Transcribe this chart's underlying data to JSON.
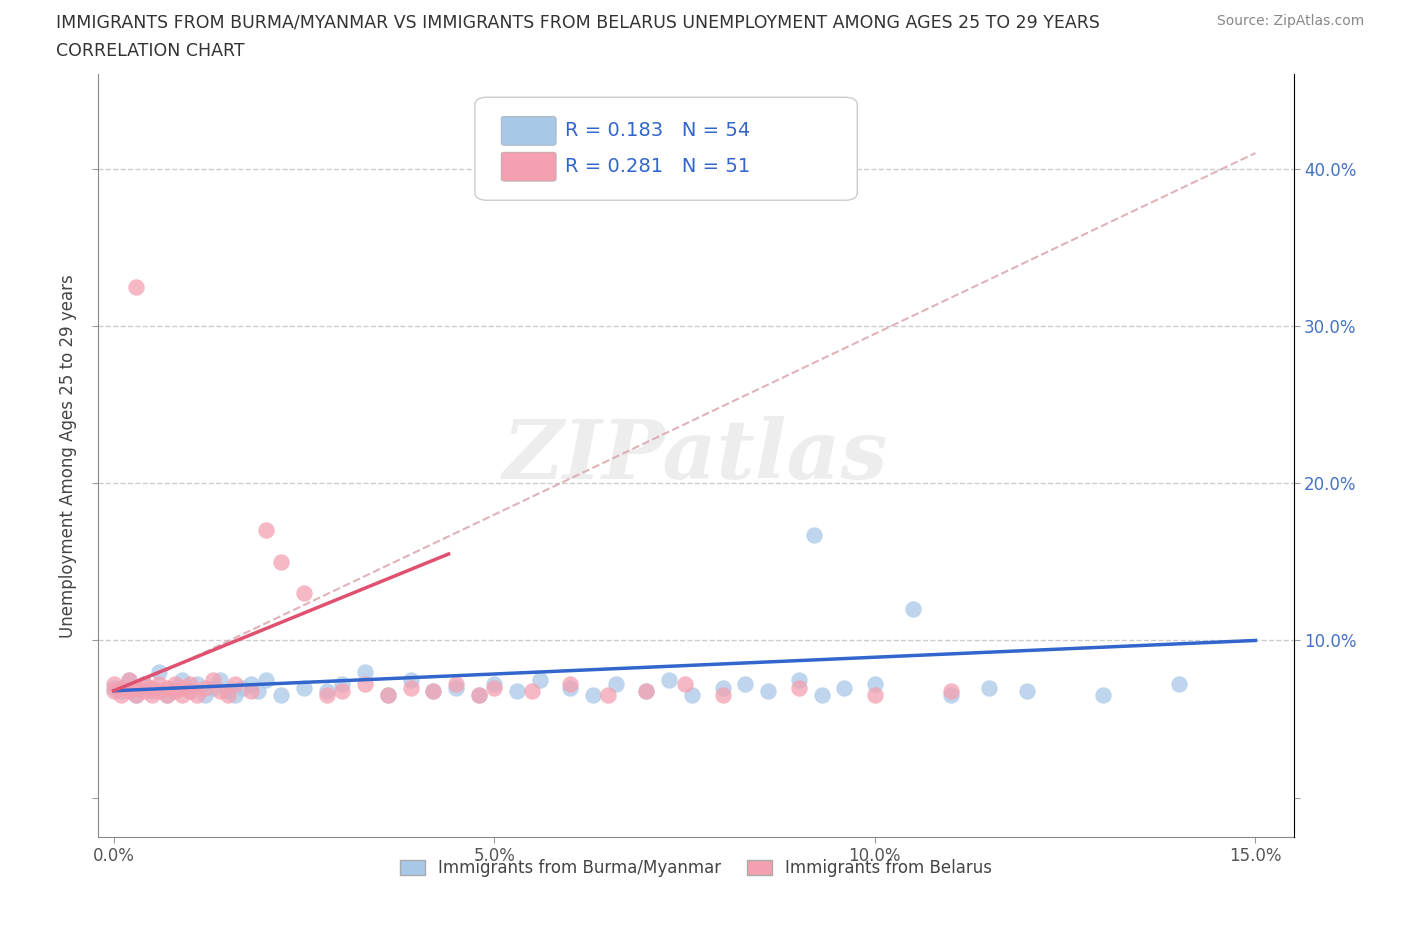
{
  "title_line1": "IMMIGRANTS FROM BURMA/MYANMAR VS IMMIGRANTS FROM BELARUS UNEMPLOYMENT AMONG AGES 25 TO 29 YEARS",
  "title_line2": "CORRELATION CHART",
  "source": "Source: ZipAtlas.com",
  "ylabel": "Unemployment Among Ages 25 to 29 years",
  "xlim": [
    -0.002,
    0.155
  ],
  "ylim": [
    -0.025,
    0.46
  ],
  "xticks": [
    0.0,
    0.05,
    0.1,
    0.15
  ],
  "xtick_labels": [
    "0.0%",
    "5.0%",
    "10.0%",
    "15.0%"
  ],
  "yticks": [
    0.0,
    0.1,
    0.2,
    0.3,
    0.4
  ],
  "ytick_right_labels": [
    "",
    "10.0%",
    "20.0%",
    "30.0%",
    "40.0%"
  ],
  "blue_scatter_color": "#A8C8E8",
  "blue_line_color": "#3366CC",
  "pink_scatter_color": "#F4A0B0",
  "pink_line_color": "#E05070",
  "diag_color": "#D8A0A8",
  "R_blue": 0.183,
  "N_blue": 54,
  "R_pink": 0.281,
  "N_pink": 51,
  "watermark": "ZIPatlas",
  "legend_label_blue": "Immigrants from Burma/Myanmar",
  "legend_label_pink": "Immigrants from Belarus",
  "blue_line_x": [
    0.0,
    0.15
  ],
  "blue_line_y": [
    0.068,
    0.1
  ],
  "pink_line_x": [
    0.0,
    0.044
  ],
  "pink_line_y": [
    0.068,
    0.155
  ],
  "diag_line_x": [
    0.0,
    0.15
  ],
  "diag_line_y": [
    0.065,
    0.41
  ]
}
